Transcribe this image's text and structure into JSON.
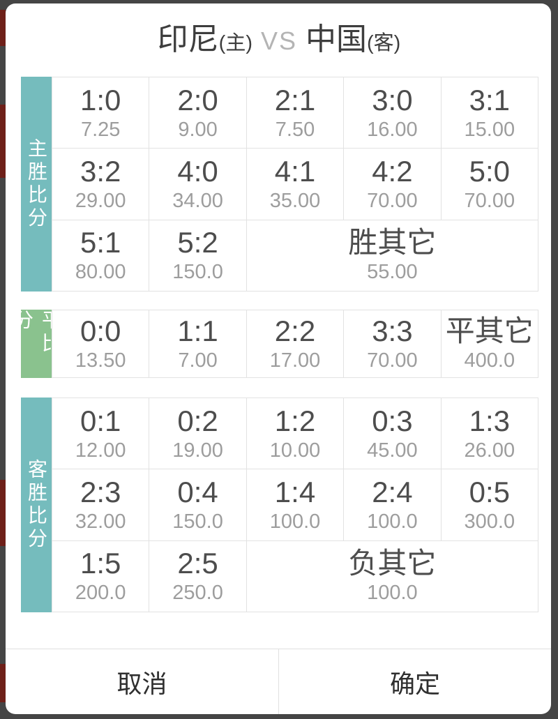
{
  "window": {
    "frame_color": "#454545",
    "edge_accent_color": "#6e2019"
  },
  "title": {
    "home_team": "印尼",
    "home_tag": "(主)",
    "separator": "VS",
    "away_team": "中国",
    "away_tag": "(客)"
  },
  "sections": [
    {
      "id": "home-win-scores",
      "label": "主胜比分",
      "color": "#75bcbd",
      "rows": [
        [
          {
            "score": "1:0",
            "odds": "7.25"
          },
          {
            "score": "2:0",
            "odds": "9.00"
          },
          {
            "score": "2:1",
            "odds": "7.50"
          },
          {
            "score": "3:0",
            "odds": "16.00"
          },
          {
            "score": "3:1",
            "odds": "15.00"
          }
        ],
        [
          {
            "score": "3:2",
            "odds": "29.00"
          },
          {
            "score": "4:0",
            "odds": "34.00"
          },
          {
            "score": "4:1",
            "odds": "35.00"
          },
          {
            "score": "4:2",
            "odds": "70.00"
          },
          {
            "score": "5:0",
            "odds": "70.00"
          }
        ],
        [
          {
            "score": "5:1",
            "odds": "80.00"
          },
          {
            "score": "5:2",
            "odds": "150.0"
          },
          {
            "score": "胜其它",
            "odds": "55.00",
            "span": 3
          }
        ]
      ]
    },
    {
      "id": "draw-scores",
      "label": "平比分",
      "color": "#8ac28e",
      "rows": [
        [
          {
            "score": "0:0",
            "odds": "13.50"
          },
          {
            "score": "1:1",
            "odds": "7.00"
          },
          {
            "score": "2:2",
            "odds": "17.00"
          },
          {
            "score": "3:3",
            "odds": "70.00"
          },
          {
            "score": "平其它",
            "odds": "400.0"
          }
        ]
      ]
    },
    {
      "id": "away-win-scores",
      "label": "客胜比分",
      "color": "#75bcbd",
      "rows": [
        [
          {
            "score": "0:1",
            "odds": "12.00"
          },
          {
            "score": "0:2",
            "odds": "19.00"
          },
          {
            "score": "1:2",
            "odds": "10.00"
          },
          {
            "score": "0:3",
            "odds": "45.00"
          },
          {
            "score": "1:3",
            "odds": "26.00"
          }
        ],
        [
          {
            "score": "2:3",
            "odds": "32.00"
          },
          {
            "score": "0:4",
            "odds": "150.0"
          },
          {
            "score": "1:4",
            "odds": "100.0"
          },
          {
            "score": "2:4",
            "odds": "100.0"
          },
          {
            "score": "0:5",
            "odds": "300.0"
          }
        ],
        [
          {
            "score": "1:5",
            "odds": "200.0"
          },
          {
            "score": "2:5",
            "odds": "250.0"
          },
          {
            "score": "负其它",
            "odds": "100.0",
            "span": 3
          }
        ]
      ]
    }
  ],
  "footer": {
    "cancel_label": "取消",
    "confirm_label": "确定"
  }
}
